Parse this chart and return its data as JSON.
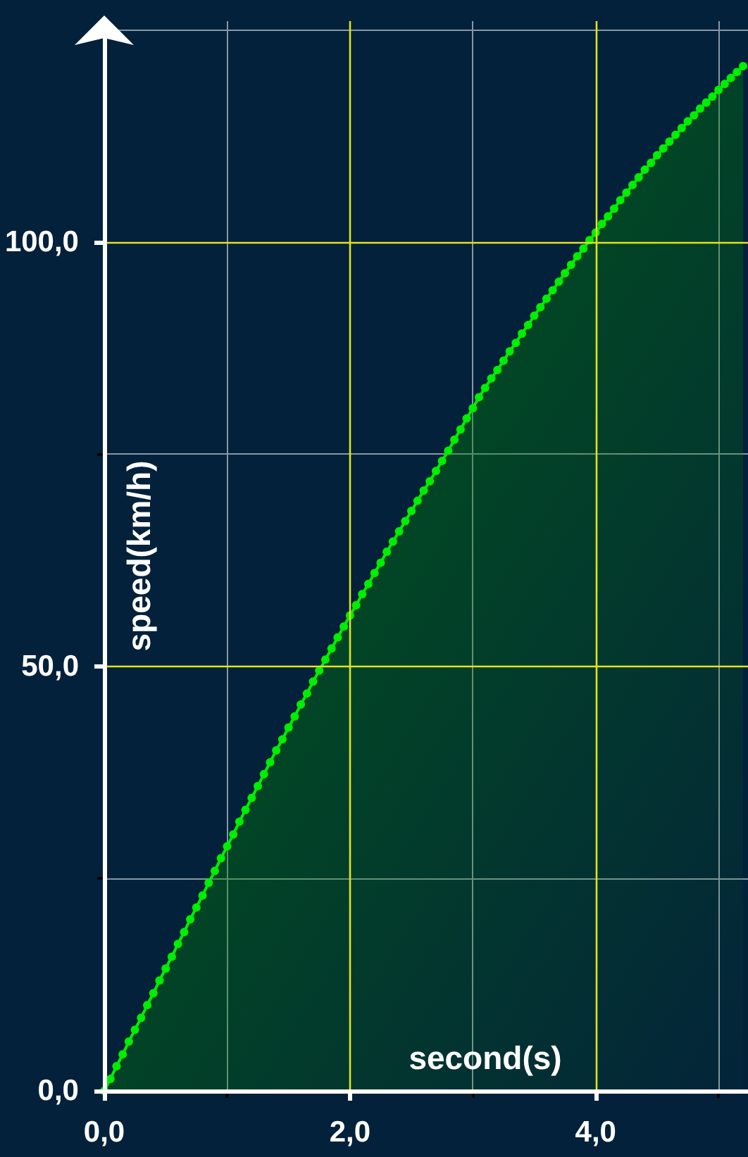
{
  "chart_data": {
    "type": "area",
    "xlabel": "second(s)",
    "ylabel": "speed(km/h)",
    "x": [
      0,
      0.05,
      0.1,
      0.15,
      0.2,
      0.25,
      0.3,
      0.35,
      0.4,
      0.45,
      0.5,
      0.55,
      0.6,
      0.65,
      0.7,
      0.75,
      0.8,
      0.85,
      0.9,
      0.95,
      1,
      1.05,
      1.1,
      1.15,
      1.2,
      1.25,
      1.3,
      1.35,
      1.4,
      1.45,
      1.5,
      1.55,
      1.6,
      1.65,
      1.7,
      1.75,
      1.8,
      1.85,
      1.9,
      1.95,
      2,
      2.05,
      2.1,
      2.15,
      2.2,
      2.25,
      2.3,
      2.35,
      2.4,
      2.45,
      2.5,
      2.55,
      2.6,
      2.65,
      2.7,
      2.75,
      2.8,
      2.85,
      2.9,
      2.95,
      3,
      3.05,
      3.1,
      3.15,
      3.2,
      3.25,
      3.3,
      3.35,
      3.4,
      3.45,
      3.5,
      3.55,
      3.6,
      3.65,
      3.7,
      3.75,
      3.8,
      3.85,
      3.9,
      3.95,
      4,
      4.05,
      4.1,
      4.15,
      4.2,
      4.25,
      4.3,
      4.35,
      4.4,
      4.45,
      4.5,
      4.55,
      4.6,
      4.65,
      4.7,
      4.75,
      4.8,
      4.85,
      4.9,
      4.95,
      5,
      5.05,
      5.1,
      5.15,
      5.2
    ],
    "values": [
      0,
      1.4,
      2.9,
      4.3,
      5.8,
      7.2,
      8.6,
      10.1,
      11.5,
      13.0,
      14.4,
      15.8,
      17.3,
      18.7,
      20.2,
      21.6,
      23.0,
      24.5,
      25.9,
      27.4,
      28.8,
      30.2,
      31.7,
      33.1,
      34.5,
      35.9,
      37.3,
      38.7,
      40.1,
      41.4,
      42.8,
      44.1,
      45.5,
      46.8,
      48.2,
      49.5,
      50.8,
      52.1,
      53.4,
      54.7,
      56.0,
      57.2,
      58.5,
      59.7,
      61.0,
      62.2,
      63.5,
      64.7,
      65.9,
      67.1,
      68.3,
      69.5,
      70.7,
      71.8,
      73.0,
      74.2,
      75.4,
      76.7,
      77.9,
      79.2,
      80.4,
      81.7,
      82.8,
      83.9,
      84.9,
      86.0,
      87.1,
      88.1,
      89.2,
      90.2,
      91.3,
      92.3,
      93.3,
      94.3,
      95.3,
      96.3,
      97.3,
      98.3,
      99.2,
      100.2,
      101.1,
      102.1,
      103.0,
      103.9,
      104.9,
      105.8,
      106.7,
      107.6,
      108.5,
      109.3,
      110.2,
      111.0,
      111.8,
      112.6,
      113.4,
      114.2,
      114.9,
      115.7,
      116.4,
      117.1,
      117.9,
      118.6,
      119.3,
      120.0,
      120.7
    ],
    "color": "#00ee00",
    "marker": "circle",
    "grid": true,
    "xlim": [
      0,
      5.24
    ],
    "xticks": [
      {
        "value": 0,
        "label": "0,0"
      },
      {
        "value": 1,
        "label": null
      },
      {
        "value": 2,
        "label": "2,0"
      },
      {
        "value": 3,
        "label": null
      },
      {
        "value": 4,
        "label": "4,0"
      },
      {
        "value": 5,
        "label": null
      }
    ],
    "ylim": [
      0,
      126
    ],
    "yticks": [
      {
        "value": 0,
        "label": "0,0"
      },
      {
        "value": 25,
        "label": null
      },
      {
        "value": 50,
        "label": "50,0"
      },
      {
        "value": 75,
        "label": null
      },
      {
        "value": 100,
        "label": "100,0"
      },
      {
        "value": 125,
        "label": null
      }
    ]
  }
}
